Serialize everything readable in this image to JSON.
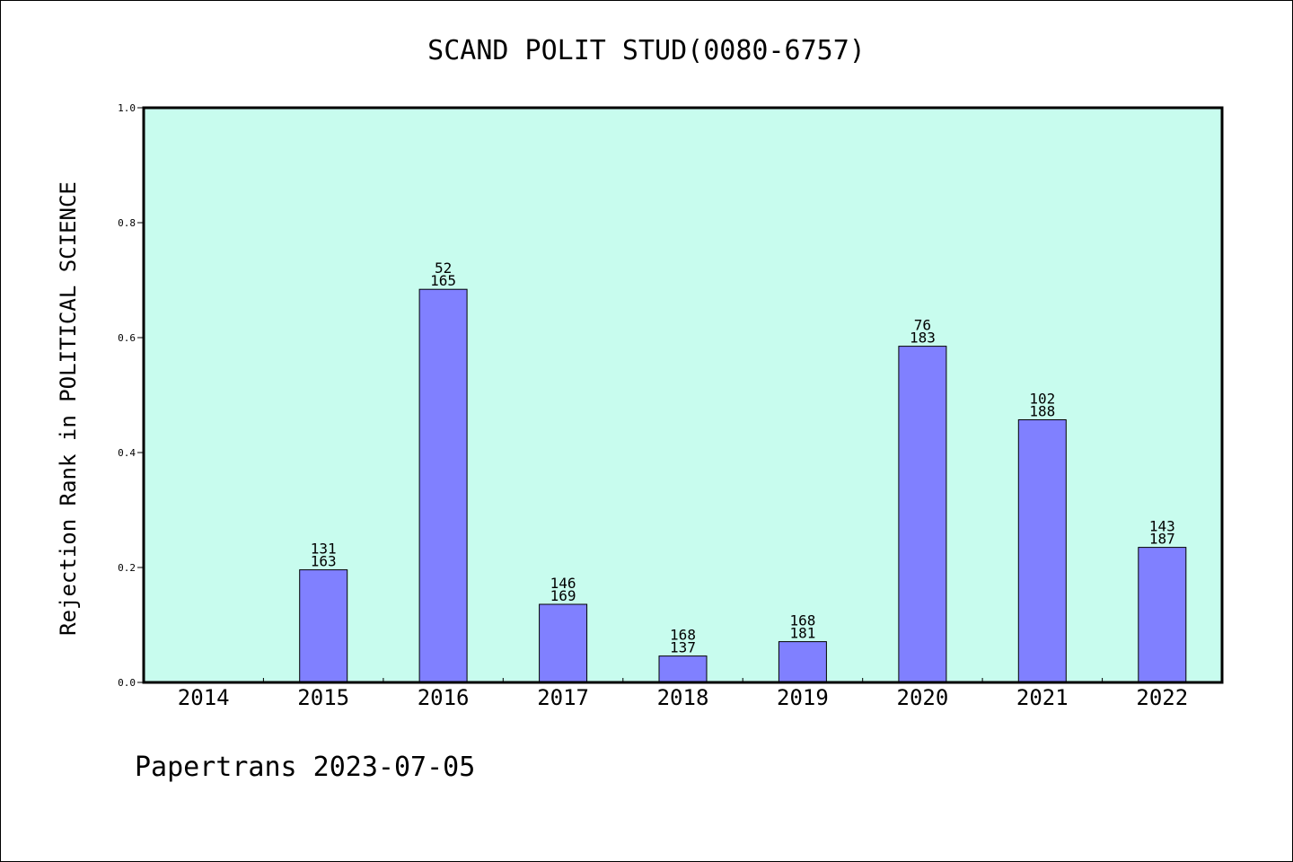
{
  "footer": "Papertrans 2023-07-05",
  "colors": {
    "plot_background": "#c8fcee",
    "bar_fill": "#8080ff",
    "bar_stroke": "#000000"
  },
  "chart_data": {
    "type": "bar",
    "title": "SCAND POLIT STUD(0080-6757)",
    "xlabel": "",
    "ylabel": "Rejection Rank in POLITICAL SCIENCE",
    "ylim": [
      0,
      1.0
    ],
    "yticks": [
      "0.0",
      "0.2",
      "0.4",
      "0.6",
      "0.8",
      "1.0"
    ],
    "grid": false,
    "categories": [
      "2014",
      "2015",
      "2016",
      "2017",
      "2018",
      "2019",
      "2020",
      "2021",
      "2022"
    ],
    "values": [
      null,
      0.196,
      0.684,
      0.136,
      0.046,
      0.071,
      0.585,
      0.457,
      0.235
    ],
    "labels_top": [
      "",
      "131",
      "52",
      "146",
      "168",
      "168",
      "76",
      "102",
      "143"
    ],
    "labels_bottom": [
      "",
      "163",
      "165",
      "169",
      "137",
      "181",
      "183",
      "188",
      "187"
    ]
  }
}
